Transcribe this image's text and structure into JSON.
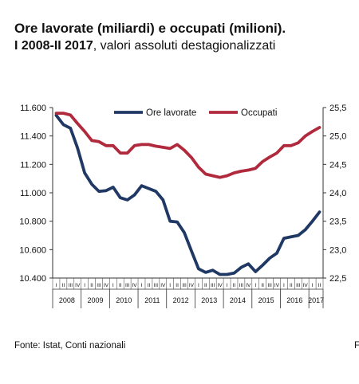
{
  "header": {
    "title": "Ore lavorate (miliardi) e occupati (milioni).",
    "subtitle_bold": "I 2008-II 2017",
    "subtitle_rest": ", valori assoluti destagionalizzati"
  },
  "footer": {
    "source": "Fonte: Istat, Conti nazionali",
    "stray_char": "F"
  },
  "colors": {
    "ore_lavorate": "#1f3864",
    "occupati": "#b0293c"
  },
  "chart_data": {
    "type": "line",
    "legend": {
      "placement": "top",
      "entries": [
        "Ore lavorate",
        "Occupati"
      ]
    },
    "grid": false,
    "y_left": {
      "ticks": [
        "11.600",
        "11.400",
        "11.200",
        "11.000",
        "10.800",
        "10.600",
        "10.400"
      ],
      "range": [
        10400,
        11600
      ]
    },
    "y_right": {
      "ticks": [
        "25,5",
        "25,0",
        "24,5",
        "24,0",
        "23,5",
        "23,0",
        "22,5"
      ],
      "range": [
        22.5,
        25.5
      ]
    },
    "quarter_labels": [
      "I",
      "II",
      "III",
      "IV",
      "I",
      "II",
      "III",
      "IV",
      "I",
      "II",
      "III",
      "IV",
      "I",
      "II",
      "III",
      "IV",
      "I",
      "II",
      "III",
      "IV",
      "I",
      "II",
      "III",
      "IV",
      "I",
      "II",
      "III",
      "IV",
      "I",
      "II",
      "III",
      "IV",
      "I",
      "II",
      "III",
      "IV",
      "I",
      "II"
    ],
    "years": [
      "2008",
      "2009",
      "2010",
      "2011",
      "2012",
      "2013",
      "2014",
      "2015",
      "2016",
      "2017"
    ],
    "series": [
      {
        "name": "Ore lavorate",
        "axis": "left",
        "color": "#1f3864",
        "values": [
          11545,
          11480,
          11455,
          11315,
          11140,
          11060,
          11010,
          11015,
          11040,
          10965,
          10950,
          10985,
          11050,
          11030,
          11010,
          10950,
          10800,
          10795,
          10720,
          10590,
          10465,
          10440,
          10455,
          10425,
          10425,
          10435,
          10475,
          10500,
          10445,
          10490,
          10540,
          10575,
          10680,
          10690,
          10700,
          10740,
          10800,
          10865
        ]
      },
      {
        "name": "Occupati",
        "axis": "right",
        "color": "#b0293c",
        "values": [
          25.4,
          25.4,
          25.37,
          25.22,
          25.08,
          24.92,
          24.9,
          24.83,
          24.83,
          24.7,
          24.7,
          24.83,
          24.85,
          24.85,
          24.82,
          24.8,
          24.78,
          24.85,
          24.75,
          24.62,
          24.45,
          24.33,
          24.3,
          24.27,
          24.3,
          24.35,
          24.38,
          24.4,
          24.43,
          24.55,
          24.63,
          24.7,
          24.83,
          24.83,
          24.88,
          25.0,
          25.08,
          25.15
        ]
      }
    ]
  }
}
